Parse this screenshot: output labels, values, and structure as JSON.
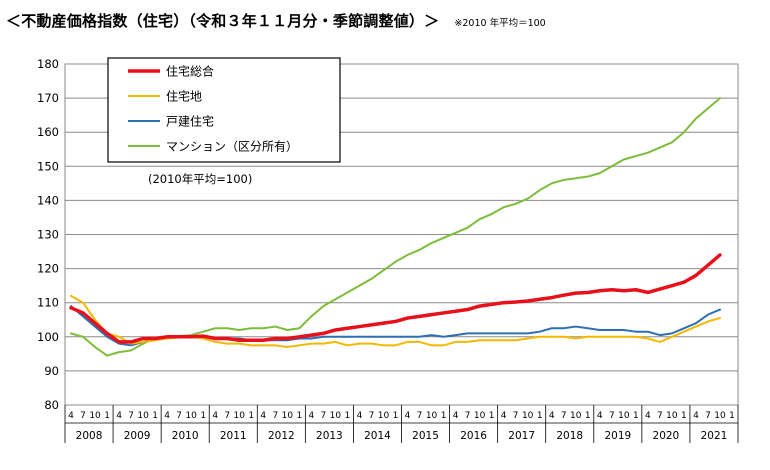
{
  "header": {
    "title": "＜不動産価格指数（住宅）（令和３年１１月分・季節調整値）＞",
    "note": "※2010 年平均＝100"
  },
  "chart_data": {
    "type": "line",
    "ylim": [
      80,
      180
    ],
    "yticks": [
      80,
      90,
      100,
      110,
      120,
      130,
      140,
      150,
      160,
      170,
      180
    ],
    "grid": true,
    "legend_position": "top-left",
    "annotation": "(2010年平均=100)",
    "x_start": "2008-04",
    "months_per_point": 3,
    "month_tick_labels": [
      "4",
      "7",
      "10",
      "1"
    ],
    "years": [
      "2008",
      "2009",
      "2010",
      "2011",
      "2012",
      "2013",
      "2014",
      "2015",
      "2016",
      "2017",
      "2018",
      "2019",
      "2020",
      "2021"
    ],
    "x": [
      "2008-04",
      "2008-07",
      "2008-10",
      "2009-01",
      "2009-04",
      "2009-07",
      "2009-10",
      "2010-01",
      "2010-04",
      "2010-07",
      "2010-10",
      "2011-01",
      "2011-04",
      "2011-07",
      "2011-10",
      "2012-01",
      "2012-04",
      "2012-07",
      "2012-10",
      "2013-01",
      "2013-04",
      "2013-07",
      "2013-10",
      "2014-01",
      "2014-04",
      "2014-07",
      "2014-10",
      "2015-01",
      "2015-04",
      "2015-07",
      "2015-10",
      "2016-01",
      "2016-04",
      "2016-07",
      "2016-10",
      "2017-01",
      "2017-04",
      "2017-07",
      "2017-10",
      "2018-01",
      "2018-04",
      "2018-07",
      "2018-10",
      "2019-01",
      "2019-04",
      "2019-07",
      "2019-10",
      "2020-01",
      "2020-04",
      "2020-07",
      "2020-10",
      "2021-01",
      "2021-04",
      "2021-07",
      "2021-10"
    ],
    "series": [
      {
        "name": "住宅総合",
        "color": "#e8101a",
        "width": 3.5,
        "values": [
          108.5,
          107,
          104,
          101,
          98.5,
          98.5,
          99.5,
          99.5,
          100,
          100,
          100,
          100.2,
          99.5,
          99.5,
          99,
          99,
          99,
          99.5,
          99.5,
          100,
          100.5,
          101,
          102,
          102.5,
          103,
          103.5,
          104,
          104.5,
          105.5,
          106,
          106.5,
          107,
          107.5,
          108,
          109,
          109.5,
          110,
          110.2,
          110.5,
          111,
          111.5,
          112.2,
          112.8,
          113,
          113.5,
          113.8,
          113.5,
          113.8,
          113,
          114,
          115,
          116,
          118,
          121,
          124
        ]
      },
      {
        "name": "住宅地",
        "color": "#f5b800",
        "width": 2,
        "values": [
          112,
          110,
          105,
          101,
          100,
          98,
          98.5,
          99,
          99.5,
          99.8,
          100,
          99.5,
          98.5,
          98,
          98,
          97.5,
          97.5,
          97.5,
          97,
          97.5,
          98,
          98,
          98.5,
          97.5,
          98,
          98,
          97.5,
          97.5,
          98.5,
          98.5,
          97.5,
          97.5,
          98.5,
          98.5,
          99,
          99,
          99,
          99,
          99.5,
          100,
          100,
          100,
          99.5,
          100,
          100,
          100,
          100,
          100,
          99.5,
          98.5,
          100,
          101.5,
          103,
          104.5,
          105.5
        ]
      },
      {
        "name": "戸建住宅",
        "color": "#2f6db5",
        "width": 2,
        "values": [
          109,
          106,
          103,
          100,
          98,
          97.5,
          98.5,
          99.5,
          100,
          100.2,
          100,
          100,
          99.5,
          99.5,
          99.5,
          99,
          99,
          99,
          99,
          99.5,
          99.5,
          100,
          100,
          100,
          100,
          100,
          100,
          100,
          100,
          100,
          100.5,
          100,
          100.5,
          101,
          101,
          101,
          101,
          101,
          101,
          101.5,
          102.5,
          102.5,
          103,
          102.5,
          102,
          102,
          102,
          101.5,
          101.5,
          100.5,
          101,
          102.5,
          104,
          106.5,
          108
        ]
      },
      {
        "name": "マンション（区分所有）",
        "color": "#7cbd3a",
        "width": 2,
        "values": [
          101,
          100,
          97,
          94.5,
          95.5,
          96,
          98,
          99.5,
          100,
          100.2,
          100.5,
          101.5,
          102.5,
          102.5,
          102,
          102.5,
          102.5,
          103,
          102,
          102.5,
          106,
          109,
          111,
          113,
          115,
          117,
          119.5,
          122,
          124,
          125.5,
          127.5,
          129,
          130.5,
          132,
          134.5,
          136,
          138,
          139,
          140.5,
          143,
          145,
          146,
          146.5,
          147,
          148,
          150,
          152,
          153,
          154,
          155.5,
          157,
          160,
          164,
          167,
          170
        ]
      }
    ]
  }
}
